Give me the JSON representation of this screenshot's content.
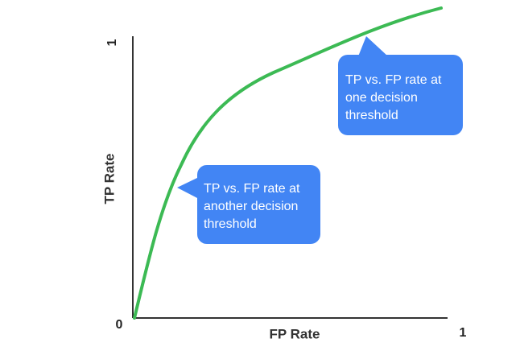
{
  "axes": {
    "x_label": "FP Rate",
    "y_label": "TP Rate",
    "origin_label": "0",
    "x_max_label": "1",
    "y_max_label": "1"
  },
  "callouts": [
    {
      "lines": [
        "TP vs. FP rate at",
        "one decision",
        "threshold"
      ]
    },
    {
      "lines": [
        "TP vs. FP rate at",
        "another decision",
        "threshold"
      ]
    }
  ]
}
